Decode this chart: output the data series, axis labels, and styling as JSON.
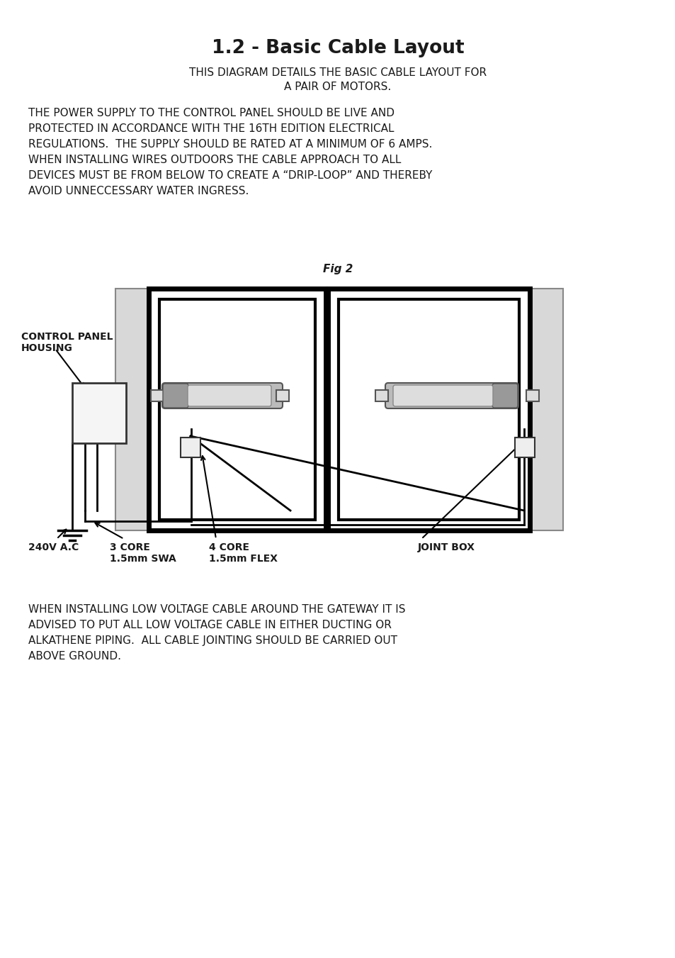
{
  "title": "1.2 - Basic Cable Layout",
  "subtitle_line1": "THIS DIAGRAM DETAILS THE BASIC CABLE LAYOUT FOR",
  "subtitle_line2": "A PAIR OF MOTORS.",
  "para1_lines": [
    "THE POWER SUPPLY TO THE CONTROL PANEL SHOULD BE LIVE AND",
    "PROTECTED IN ACCORDANCE WITH THE 16TH EDITION ELECTRICAL",
    "REGULATIONS.  THE SUPPLY SHOULD BE RATED AT A MINIMUM OF 6 AMPS.",
    "WHEN INSTALLING WIRES OUTDOORS THE CABLE APPROACH TO ALL",
    "DEVICES MUST BE FROM BELOW TO CREATE A “DRIP-LOOP” AND THEREBY",
    "AVOID UNNECCESSARY WATER INGRESS."
  ],
  "fig_label": "Fig 2",
  "para2_lines": [
    "WHEN INSTALLING LOW VOLTAGE CABLE AROUND THE GATEWAY IT IS",
    "ADVISED TO PUT ALL LOW VOLTAGE CABLE IN EITHER DUCTING OR",
    "ALKATHENE PIPING.  ALL CABLE JOINTING SHOULD BE CARRIED OUT",
    "ABOVE GROUND."
  ],
  "label_control_panel": "CONTROL PANEL\nHOUSING",
  "label_240v": "240V A.C",
  "label_3core": "3 CORE\n1.5mm SWA",
  "label_4core": "4 CORE\n1.5mm FLEX",
  "label_joint": "JOINT BOX",
  "bg_color": "#ffffff",
  "text_color": "#1a1a1a",
  "gate_fill": "#ffffff",
  "gate_border": "#000000",
  "pillar_fill": "#d8d8d8",
  "pillar_border": "#888888",
  "motor_fill": "#bbbbbb",
  "motor_dark": "#999999",
  "motor_light": "#dddddd",
  "cable_color": "#000000",
  "bracket_fill": "#dddddd"
}
